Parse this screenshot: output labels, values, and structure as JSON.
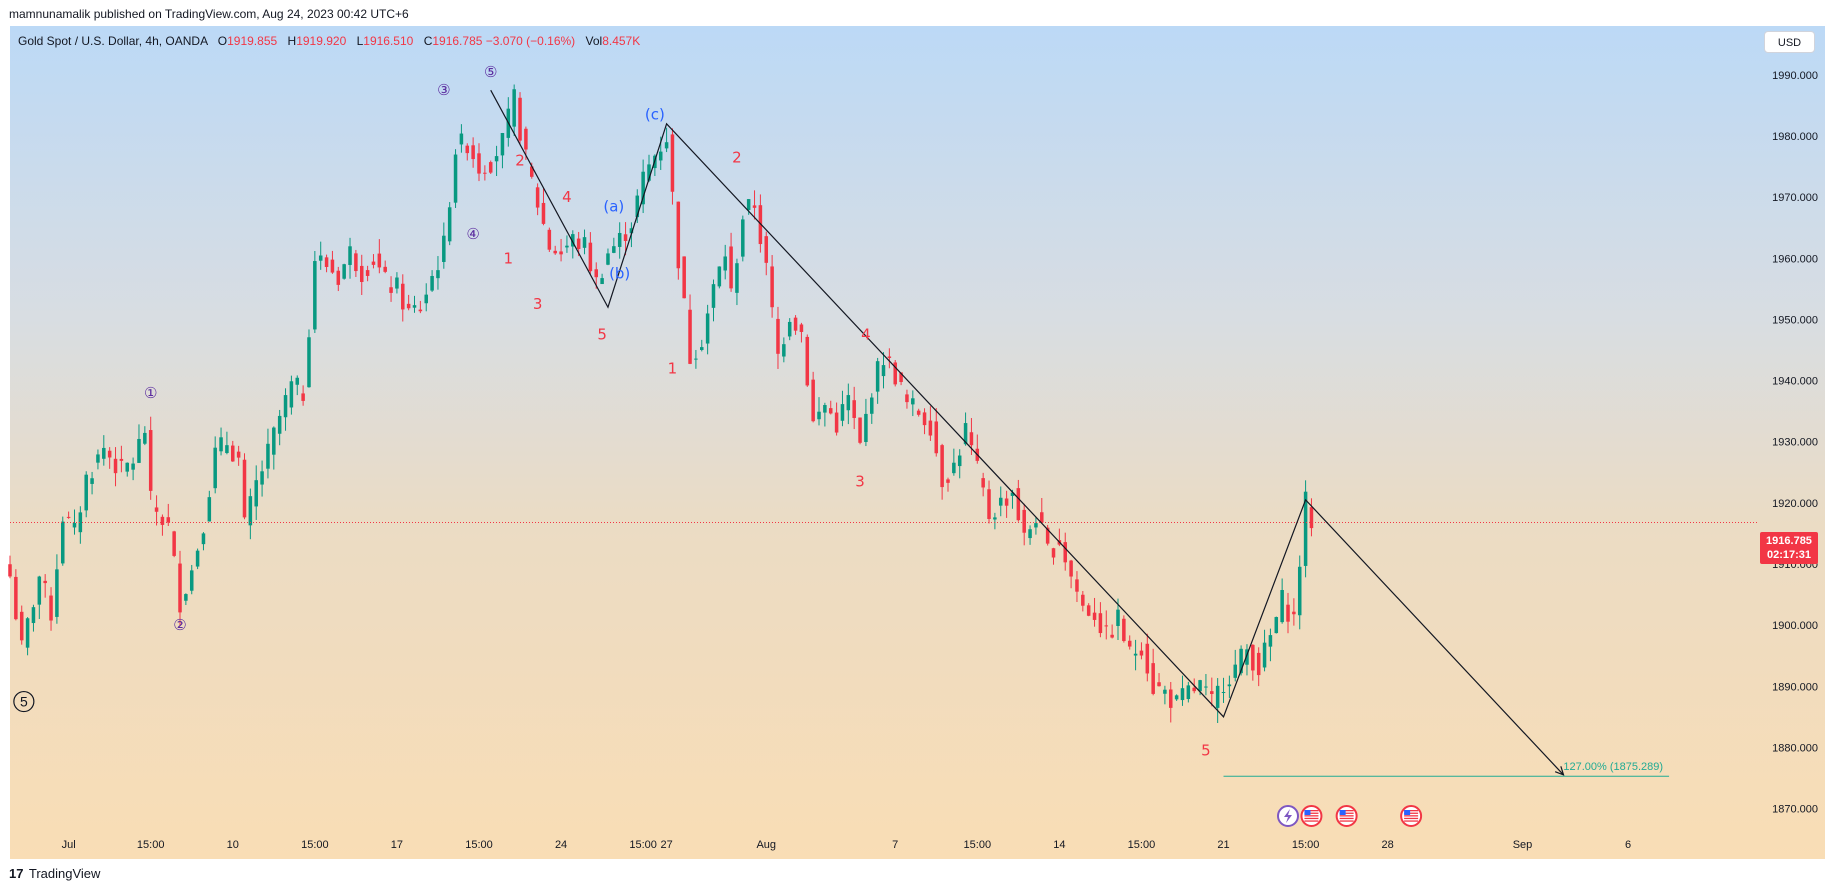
{
  "header": {
    "publisher_text": "mamnunamalik published on TradingView.com, Aug 24, 2023 00:42 UTC+6"
  },
  "legend": {
    "symbol": "Gold Spot / U.S. Dollar, 4h, OANDA",
    "open_label": "O",
    "open_value": "1919.855",
    "high_label": "H",
    "high_value": "1919.920",
    "low_label": "L",
    "low_value": "1916.510",
    "close_label": "C",
    "close_value": "1916.785",
    "change_value": "−3.070 (−0.16%)",
    "vol_label": "Vol",
    "vol_value": "8.457K"
  },
  "currency_button": "USD",
  "last_price": {
    "price": "1916.785",
    "countdown": "02:17:31",
    "value": 1916.785
  },
  "footer": {
    "logo_glyph": "17",
    "brand": "TradingView"
  },
  "colors": {
    "up": "#089981",
    "down": "#f23645",
    "wave_purple": "#5b2c9f",
    "wave_blue": "#2962ff",
    "fib": "#22ab94"
  },
  "chart_data": {
    "type": "candlestick",
    "title": "Gold Spot / U.S. Dollar, 4h, OANDA",
    "ylim": [
      1866,
      1998
    ],
    "y_ticks": [
      "1990.000",
      "1980.000",
      "1970.000",
      "1960.000",
      "1950.000",
      "1940.000",
      "1930.000",
      "1920.000",
      "1910.000",
      "1900.000",
      "1890.000",
      "1880.000",
      "1870.000"
    ],
    "x_range": [
      0,
      298
    ],
    "x_ticks": [
      {
        "x": 10,
        "label": "Jul"
      },
      {
        "x": 24,
        "label": "15:00"
      },
      {
        "x": 38,
        "label": "10"
      },
      {
        "x": 52,
        "label": "15:00"
      },
      {
        "x": 66,
        "label": "17"
      },
      {
        "x": 80,
        "label": "15:00"
      },
      {
        "x": 94,
        "label": "24"
      },
      {
        "x": 108,
        "label": "15:00"
      },
      {
        "x": 112,
        "label": "27"
      },
      {
        "x": 129,
        "label": "Aug"
      },
      {
        "x": 151,
        "label": "7"
      },
      {
        "x": 165,
        "label": "15:00"
      },
      {
        "x": 179,
        "label": "14"
      },
      {
        "x": 193,
        "label": "15:00"
      },
      {
        "x": 207,
        "label": "21"
      },
      {
        "x": 221,
        "label": "15:00"
      },
      {
        "x": 235,
        "label": "28"
      },
      {
        "x": 258,
        "label": "Sep"
      },
      {
        "x": 276,
        "label": "6"
      }
    ],
    "anchors": [
      [
        0,
        1908
      ],
      [
        2,
        1896
      ],
      [
        5,
        1908
      ],
      [
        7,
        1902
      ],
      [
        9,
        1918
      ],
      [
        11,
        1915
      ],
      [
        13,
        1924
      ],
      [
        16,
        1929
      ],
      [
        19,
        1925
      ],
      [
        21,
        1927
      ],
      [
        23,
        1932
      ],
      [
        24,
        1920
      ],
      [
        27,
        1916
      ],
      [
        29,
        1904
      ],
      [
        31,
        1909
      ],
      [
        33,
        1917
      ],
      [
        35,
        1928
      ],
      [
        37,
        1930
      ],
      [
        39,
        1927
      ],
      [
        40,
        1916
      ],
      [
        42,
        1923
      ],
      [
        44,
        1928
      ],
      [
        46,
        1934
      ],
      [
        48,
        1939
      ],
      [
        50,
        1938
      ],
      [
        52,
        1960
      ],
      [
        54,
        1959
      ],
      [
        56,
        1957
      ],
      [
        58,
        1961
      ],
      [
        60,
        1958
      ],
      [
        62,
        1960
      ],
      [
        64,
        1956
      ],
      [
        66,
        1955
      ],
      [
        68,
        1951
      ],
      [
        70,
        1952
      ],
      [
        72,
        1957
      ],
      [
        74,
        1962
      ],
      [
        76,
        1978
      ],
      [
        78,
        1979
      ],
      [
        80,
        1975
      ],
      [
        82,
        1976
      ],
      [
        84,
        1979
      ],
      [
        86,
        1986
      ],
      [
        88,
        1976
      ],
      [
        90,
        1969
      ],
      [
        92,
        1962
      ],
      [
        94,
        1961
      ],
      [
        96,
        1963
      ],
      [
        98,
        1962
      ],
      [
        100,
        1956
      ],
      [
        102,
        1961
      ],
      [
        104,
        1963
      ],
      [
        106,
        1966
      ],
      [
        108,
        1973
      ],
      [
        110,
        1977
      ],
      [
        112,
        1980
      ],
      [
        114,
        1960
      ],
      [
        116,
        1944
      ],
      [
        118,
        1947
      ],
      [
        120,
        1955
      ],
      [
        122,
        1961
      ],
      [
        123,
        1954
      ],
      [
        125,
        1967
      ],
      [
        127,
        1969
      ],
      [
        129,
        1958
      ],
      [
        131,
        1944
      ],
      [
        133,
        1951
      ],
      [
        135,
        1948
      ],
      [
        137,
        1933
      ],
      [
        139,
        1936
      ],
      [
        141,
        1933
      ],
      [
        143,
        1937
      ],
      [
        145,
        1929
      ],
      [
        147,
        1939
      ],
      [
        149,
        1944
      ],
      [
        151,
        1941
      ],
      [
        153,
        1936
      ],
      [
        155,
        1935
      ],
      [
        157,
        1933
      ],
      [
        159,
        1924
      ],
      [
        161,
        1926
      ],
      [
        163,
        1932
      ],
      [
        165,
        1925
      ],
      [
        167,
        1918
      ],
      [
        169,
        1920
      ],
      [
        171,
        1922
      ],
      [
        173,
        1914
      ],
      [
        175,
        1918
      ],
      [
        177,
        1912
      ],
      [
        179,
        1914
      ],
      [
        181,
        1908
      ],
      [
        183,
        1903
      ],
      [
        185,
        1902
      ],
      [
        187,
        1898
      ],
      [
        189,
        1901
      ],
      [
        191,
        1895
      ],
      [
        193,
        1897
      ],
      [
        195,
        1890
      ],
      [
        197,
        1889
      ],
      [
        199,
        1887
      ],
      [
        201,
        1889
      ],
      [
        203,
        1890
      ],
      [
        205,
        1887
      ],
      [
        207,
        1891
      ],
      [
        209,
        1893
      ],
      [
        211,
        1896
      ],
      [
        213,
        1893
      ],
      [
        215,
        1898
      ],
      [
        217,
        1904
      ],
      [
        219,
        1901
      ],
      [
        221,
        1920
      ],
      [
        222,
        1917
      ]
    ],
    "wave_lines": [
      [
        [
          82,
          1987.5
        ],
        [
          102,
          1952
        ],
        [
          112,
          1982
        ],
        [
          207,
          1885
        ],
        [
          221,
          1920.5
        ],
        [
          265,
          1875.5
        ]
      ]
    ],
    "fib_line": {
      "x1": 207,
      "x2": 283,
      "y": 1875.289,
      "label": "127.00% (1875.289)"
    },
    "annotations": [
      {
        "text": "①",
        "x": 24,
        "y": 1938,
        "color": "purple"
      },
      {
        "text": "②",
        "x": 29,
        "y": 1900,
        "color": "purple"
      },
      {
        "text": "③",
        "x": 74,
        "y": 1987.5,
        "color": "purple"
      },
      {
        "text": "④",
        "x": 79,
        "y": 1964,
        "color": "purple"
      },
      {
        "text": "⑤",
        "x": 82,
        "y": 1990.5,
        "color": "purple"
      },
      {
        "text": "5",
        "x": 1,
        "y": 1887.5,
        "color": "black-circle"
      },
      {
        "text": "1",
        "x": 85,
        "y": 1960,
        "color": "red"
      },
      {
        "text": "2",
        "x": 87,
        "y": 1976,
        "color": "red"
      },
      {
        "text": "3",
        "x": 90,
        "y": 1952.5,
        "color": "red"
      },
      {
        "text": "4",
        "x": 95,
        "y": 1970,
        "color": "red"
      },
      {
        "text": "5",
        "x": 101,
        "y": 1947.5,
        "color": "red"
      },
      {
        "text": "(a)",
        "x": 103,
        "y": 1968.5,
        "color": "blue"
      },
      {
        "text": "(b)",
        "x": 104,
        "y": 1957.5,
        "color": "blue"
      },
      {
        "text": "(c)",
        "x": 110,
        "y": 1983.5,
        "color": "blue"
      },
      {
        "text": "1",
        "x": 113,
        "y": 1942,
        "color": "red"
      },
      {
        "text": "2",
        "x": 124,
        "y": 1976.5,
        "color": "red"
      },
      {
        "text": "4",
        "x": 146,
        "y": 1947.5,
        "color": "red"
      },
      {
        "text": "3",
        "x": 145,
        "y": 1923.5,
        "color": "red"
      },
      {
        "text": "5",
        "x": 204,
        "y": 1879.5,
        "color": "red"
      }
    ],
    "event_icons": [
      {
        "x": 218,
        "name": "lightning-icon"
      },
      {
        "x": 222,
        "name": "us-flag-icon"
      },
      {
        "x": 228,
        "name": "us-flag-icon"
      },
      {
        "x": 239,
        "name": "us-flag-icon"
      }
    ]
  }
}
